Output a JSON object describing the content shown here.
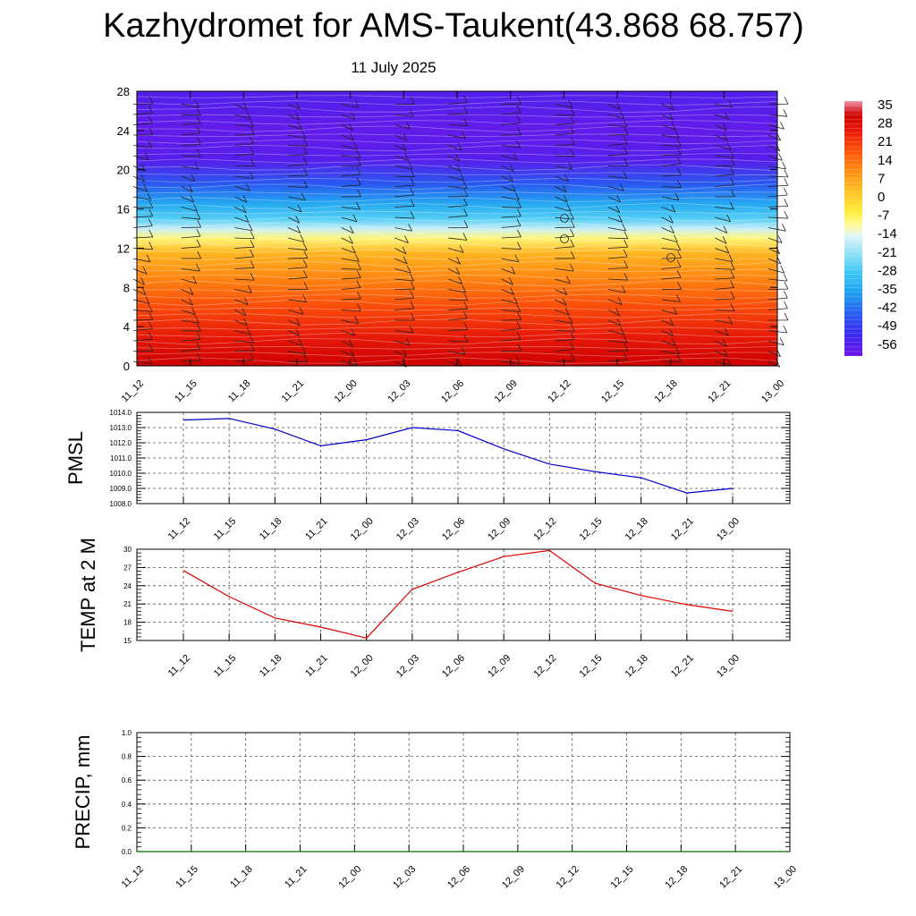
{
  "header": {
    "title": "Kazhydromet for AMS-Taukent(43.868 68.757)",
    "subtitle": "11 July 2025"
  },
  "colors": {
    "pmsl_line": "#0000cc",
    "temp_line": "#dd0000",
    "precip_line": "#006600",
    "grid": "#000000"
  },
  "chart_data": [
    {
      "type": "heatmap",
      "title": "",
      "ylim": [
        0,
        28
      ],
      "y_ticks": [
        "0",
        "4",
        "8",
        "12",
        "16",
        "20",
        "24",
        "28"
      ],
      "x_ticks": [
        "11_12",
        "11_15",
        "11_18",
        "11_21",
        "12_00",
        "12_03",
        "12_06",
        "12_09",
        "12_12",
        "12_15",
        "12_18",
        "12_21",
        "13_00"
      ],
      "colorbar": {
        "labels": [
          "35",
          "28",
          "21",
          "14",
          "7",
          "0",
          "-7",
          "-14",
          "-21",
          "-28",
          "-35",
          "-42",
          "-49",
          "-56"
        ]
      },
      "temperature_profile": [
        {
          "height": 0,
          "value": 33
        },
        {
          "height": 3,
          "value": 27
        },
        {
          "height": 6,
          "value": 20
        },
        {
          "height": 9,
          "value": 12
        },
        {
          "height": 11.5,
          "value": 5
        },
        {
          "height": 13,
          "value": -8
        },
        {
          "height": 14,
          "value": -16
        },
        {
          "height": 15,
          "value": -26
        },
        {
          "height": 16.5,
          "value": -34
        },
        {
          "height": 18.5,
          "value": -44
        },
        {
          "height": 21,
          "value": -56
        },
        {
          "height": 24,
          "value": -58
        },
        {
          "height": 28,
          "value": -55
        }
      ]
    },
    {
      "type": "line",
      "ylabel": "PMSL",
      "ylim": [
        1008.0,
        1014.0
      ],
      "y_ticks": [
        "1008.0",
        "1009.0",
        "1010.0",
        "1011.0",
        "1012.0",
        "1013.0",
        "1014.0"
      ],
      "categories": [
        "11_12",
        "11_15",
        "11_18",
        "11_21",
        "12_00",
        "12_03",
        "12_06",
        "12_09",
        "12_12",
        "12_15",
        "12_18",
        "12_21",
        "13_00"
      ],
      "values": [
        1013.5,
        1013.6,
        1012.9,
        1011.8,
        1012.2,
        1013.0,
        1012.8,
        1011.6,
        1010.6,
        1010.1,
        1009.7,
        1008.7,
        1009.0
      ]
    },
    {
      "type": "line",
      "ylabel": "TEMP at 2 M",
      "ylim": [
        15,
        30
      ],
      "y_ticks": [
        "15",
        "18",
        "21",
        "24",
        "27",
        "30"
      ],
      "categories": [
        "11_12",
        "11_15",
        "11_18",
        "11_21",
        "12_00",
        "12_03",
        "12_06",
        "12_09",
        "12_12",
        "12_15",
        "12_18",
        "12_21",
        "13_00"
      ],
      "values": [
        26.5,
        22.2,
        18.7,
        17.2,
        15.4,
        23.4,
        26.2,
        28.8,
        29.8,
        24.4,
        22.4,
        20.9,
        19.8
      ]
    },
    {
      "type": "line",
      "ylabel": "PRECIP, mm",
      "ylim": [
        0.0,
        1.0
      ],
      "y_ticks": [
        "0.0",
        "0.2",
        "0.4",
        "0.6",
        "0.8",
        "1.0"
      ],
      "categories": [
        "11_12",
        "11_15",
        "11_18",
        "11_21",
        "12_00",
        "12_03",
        "12_06",
        "12_09",
        "12_12",
        "12_15",
        "12_18",
        "12_21",
        "13_00"
      ],
      "values": [
        0,
        0,
        0,
        0,
        0,
        0,
        0,
        0,
        0,
        0,
        0,
        0,
        0
      ]
    }
  ]
}
